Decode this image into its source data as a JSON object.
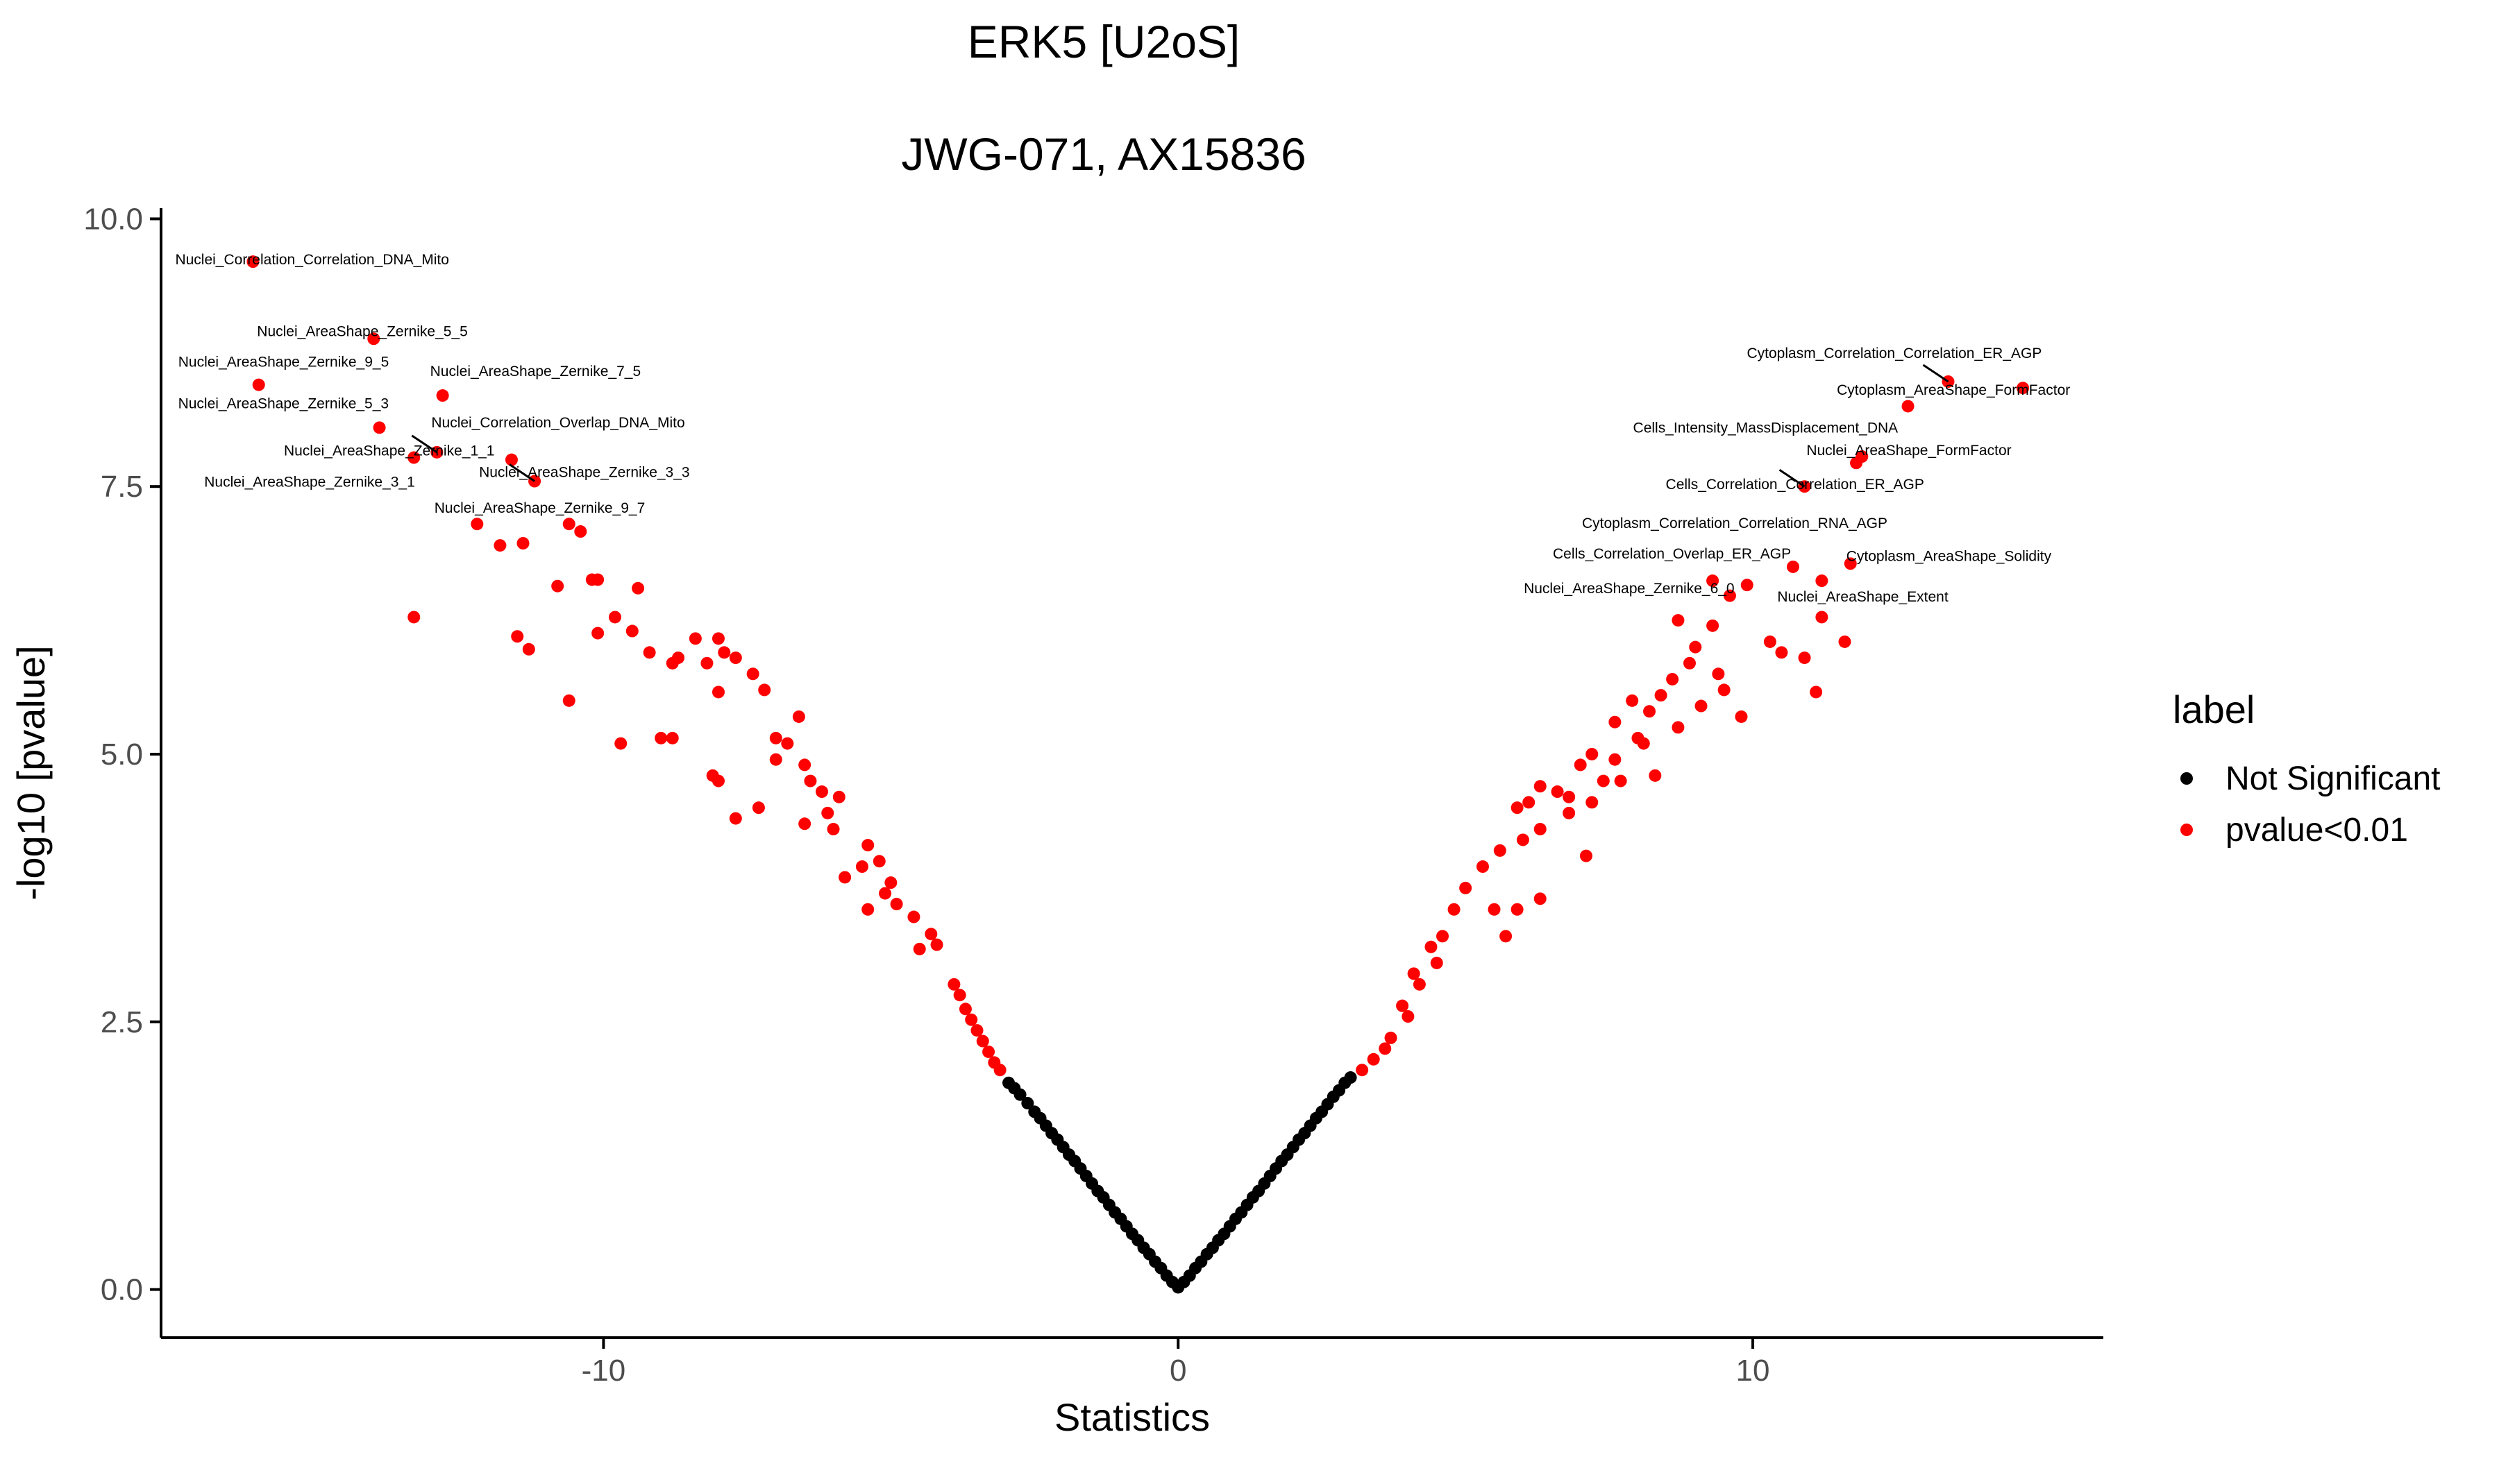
{
  "chart_data": {
    "type": "scatter",
    "title": "ERK5 [U2oS]",
    "subtitle": "JWG-071, AX15836",
    "xlabel": "Statistics",
    "ylabel": "-log10 [pvalue]",
    "xlim": [
      -17.7,
      16.1
    ],
    "ylim": [
      -0.45,
      10.1
    ],
    "x_ticks": [
      -10,
      0,
      10
    ],
    "x_tick_labels": [
      "-10",
      "0",
      "10"
    ],
    "y_ticks": [
      0,
      2.5,
      5,
      7.5,
      10
    ],
    "y_tick_labels": [
      "0.0",
      "2.5",
      "5.0",
      "7.5",
      "10.0"
    ],
    "grid": false,
    "legend": {
      "title": "label",
      "position": "right",
      "entries": [
        {
          "name": "Not Significant",
          "color": "#000000"
        },
        {
          "name": "pvalue<0.01",
          "color": "#ff0000"
        }
      ]
    },
    "series": [
      {
        "name": "Not Significant",
        "color": "#000000",
        "points": [
          [
            -2.95,
            1.93
          ],
          [
            -2.85,
            1.88
          ],
          [
            -2.75,
            1.82
          ],
          [
            -2.62,
            1.74
          ],
          [
            -2.5,
            1.66
          ],
          [
            -2.4,
            1.6
          ],
          [
            -2.3,
            1.53
          ],
          [
            -2.2,
            1.46
          ],
          [
            -2.1,
            1.4
          ],
          [
            -2.0,
            1.33
          ],
          [
            -1.9,
            1.26
          ],
          [
            -1.8,
            1.2
          ],
          [
            -1.7,
            1.13
          ],
          [
            -1.6,
            1.06
          ],
          [
            -1.5,
            0.99
          ],
          [
            -1.4,
            0.92
          ],
          [
            -1.3,
            0.86
          ],
          [
            -1.2,
            0.79
          ],
          [
            -1.1,
            0.72
          ],
          [
            -1.0,
            0.66
          ],
          [
            -0.9,
            0.59
          ],
          [
            -0.8,
            0.52
          ],
          [
            -0.7,
            0.46
          ],
          [
            -0.6,
            0.39
          ],
          [
            -0.5,
            0.33
          ],
          [
            -0.4,
            0.26
          ],
          [
            -0.3,
            0.2
          ],
          [
            -0.2,
            0.13
          ],
          [
            -0.1,
            0.07
          ],
          [
            0.0,
            0.02
          ],
          [
            0.1,
            0.07
          ],
          [
            0.2,
            0.13
          ],
          [
            0.3,
            0.2
          ],
          [
            0.4,
            0.26
          ],
          [
            0.5,
            0.33
          ],
          [
            0.6,
            0.39
          ],
          [
            0.7,
            0.46
          ],
          [
            0.8,
            0.52
          ],
          [
            0.9,
            0.59
          ],
          [
            1.0,
            0.66
          ],
          [
            1.1,
            0.72
          ],
          [
            1.2,
            0.79
          ],
          [
            1.3,
            0.86
          ],
          [
            1.4,
            0.92
          ],
          [
            1.5,
            0.99
          ],
          [
            1.6,
            1.06
          ],
          [
            1.7,
            1.13
          ],
          [
            1.8,
            1.2
          ],
          [
            1.9,
            1.26
          ],
          [
            2.0,
            1.33
          ],
          [
            2.1,
            1.4
          ],
          [
            2.2,
            1.46
          ],
          [
            2.3,
            1.53
          ],
          [
            2.4,
            1.6
          ],
          [
            2.5,
            1.66
          ],
          [
            2.6,
            1.73
          ],
          [
            2.7,
            1.8
          ],
          [
            2.8,
            1.86
          ],
          [
            2.9,
            1.93
          ],
          [
            3.0,
            1.98
          ]
        ]
      },
      {
        "name": "pvalue<0.01",
        "color": "#ff0000",
        "points": [
          [
            -16.1,
            9.6
          ],
          [
            -14.0,
            8.88
          ],
          [
            -16.0,
            8.45
          ],
          [
            -13.9,
            8.05
          ],
          [
            -12.8,
            8.35
          ],
          [
            -12.9,
            7.82
          ],
          [
            -13.3,
            7.77
          ],
          [
            -11.6,
            7.75
          ],
          [
            -11.2,
            7.55
          ],
          [
            -12.2,
            7.15
          ],
          [
            -10.6,
            7.15
          ],
          [
            -10.4,
            7.08
          ],
          [
            -11.4,
            6.97
          ],
          [
            -11.8,
            6.95
          ],
          [
            -10.2,
            6.63
          ],
          [
            -10.1,
            6.63
          ],
          [
            -10.8,
            6.57
          ],
          [
            -9.4,
            6.55
          ],
          [
            -13.3,
            6.28
          ],
          [
            -9.8,
            6.28
          ],
          [
            -9.5,
            6.15
          ],
          [
            -10.1,
            6.13
          ],
          [
            -11.5,
            6.1
          ],
          [
            -11.3,
            5.98
          ],
          [
            -9.2,
            5.95
          ],
          [
            -8.4,
            6.08
          ],
          [
            -8.0,
            6.08
          ],
          [
            -7.9,
            5.95
          ],
          [
            -8.7,
            5.9
          ],
          [
            -7.7,
            5.9
          ],
          [
            -8.2,
            5.85
          ],
          [
            -8.8,
            5.85
          ],
          [
            -7.4,
            5.75
          ],
          [
            -7.2,
            5.6
          ],
          [
            -8.0,
            5.58
          ],
          [
            -10.6,
            5.5
          ],
          [
            -6.6,
            5.35
          ],
          [
            -9.0,
            5.15
          ],
          [
            -8.8,
            5.15
          ],
          [
            -9.7,
            5.1
          ],
          [
            -7.0,
            5.15
          ],
          [
            -6.8,
            5.1
          ],
          [
            -7.0,
            4.95
          ],
          [
            -6.5,
            4.9
          ],
          [
            -6.4,
            4.75
          ],
          [
            -8.1,
            4.8
          ],
          [
            -8.0,
            4.75
          ],
          [
            -6.2,
            4.65
          ],
          [
            -5.9,
            4.6
          ],
          [
            -7.3,
            4.5
          ],
          [
            -6.1,
            4.45
          ],
          [
            -7.7,
            4.4
          ],
          [
            -6.5,
            4.35
          ],
          [
            -6.0,
            4.3
          ],
          [
            -5.4,
            4.15
          ],
          [
            -5.2,
            4.0
          ],
          [
            -5.5,
            3.95
          ],
          [
            -5.0,
            3.8
          ],
          [
            -5.8,
            3.85
          ],
          [
            -5.1,
            3.7
          ],
          [
            -4.9,
            3.6
          ],
          [
            -5.4,
            3.55
          ],
          [
            -4.6,
            3.48
          ],
          [
            -4.3,
            3.32
          ],
          [
            -4.2,
            3.22
          ],
          [
            -4.5,
            3.18
          ],
          [
            -3.9,
            2.85
          ],
          [
            -3.8,
            2.75
          ],
          [
            -3.7,
            2.62
          ],
          [
            -3.6,
            2.52
          ],
          [
            -3.5,
            2.42
          ],
          [
            -3.4,
            2.32
          ],
          [
            -3.3,
            2.22
          ],
          [
            -3.2,
            2.12
          ],
          [
            -3.1,
            2.05
          ],
          [
            13.4,
            8.48
          ],
          [
            14.7,
            8.42
          ],
          [
            12.7,
            8.25
          ],
          [
            11.9,
            7.78
          ],
          [
            11.8,
            7.72
          ],
          [
            10.9,
            7.5
          ],
          [
            10.7,
            6.75
          ],
          [
            11.7,
            6.78
          ],
          [
            9.3,
            6.62
          ],
          [
            9.9,
            6.58
          ],
          [
            11.2,
            6.62
          ],
          [
            9.6,
            6.48
          ],
          [
            11.2,
            6.28
          ],
          [
            8.7,
            6.25
          ],
          [
            9.3,
            6.2
          ],
          [
            11.6,
            6.05
          ],
          [
            10.3,
            6.05
          ],
          [
            9.0,
            6.0
          ],
          [
            8.9,
            5.85
          ],
          [
            10.5,
            5.95
          ],
          [
            10.9,
            5.9
          ],
          [
            9.4,
            5.75
          ],
          [
            8.6,
            5.7
          ],
          [
            9.5,
            5.6
          ],
          [
            11.1,
            5.58
          ],
          [
            8.4,
            5.55
          ],
          [
            9.1,
            5.45
          ],
          [
            7.9,
            5.5
          ],
          [
            8.2,
            5.4
          ],
          [
            9.8,
            5.35
          ],
          [
            7.6,
            5.3
          ],
          [
            8.7,
            5.25
          ],
          [
            8.1,
            5.1
          ],
          [
            8.0,
            5.15
          ],
          [
            7.2,
            5.0
          ],
          [
            7.6,
            4.95
          ],
          [
            7.0,
            4.9
          ],
          [
            8.3,
            4.8
          ],
          [
            7.4,
            4.75
          ],
          [
            6.3,
            4.7
          ],
          [
            6.6,
            4.65
          ],
          [
            7.7,
            4.75
          ],
          [
            6.8,
            4.6
          ],
          [
            6.1,
            4.55
          ],
          [
            5.9,
            4.5
          ],
          [
            6.8,
            4.45
          ],
          [
            7.2,
            4.55
          ],
          [
            6.3,
            4.3
          ],
          [
            6.0,
            4.2
          ],
          [
            7.1,
            4.05
          ],
          [
            5.6,
            4.1
          ],
          [
            5.3,
            3.95
          ],
          [
            5.0,
            3.75
          ],
          [
            6.3,
            3.65
          ],
          [
            5.5,
            3.55
          ],
          [
            5.9,
            3.55
          ],
          [
            4.8,
            3.55
          ],
          [
            4.6,
            3.3
          ],
          [
            5.7,
            3.3
          ],
          [
            4.4,
            3.2
          ],
          [
            4.5,
            3.05
          ],
          [
            4.1,
            2.95
          ],
          [
            4.2,
            2.85
          ],
          [
            3.9,
            2.65
          ],
          [
            4.0,
            2.55
          ],
          [
            3.7,
            2.35
          ],
          [
            3.6,
            2.25
          ],
          [
            3.4,
            2.15
          ],
          [
            3.2,
            2.05
          ]
        ]
      }
    ],
    "annotations": [
      {
        "text": "Nuclei_Correlation_Correlation_DNA_Mito",
        "x": -16.1,
        "y": 9.6
      },
      {
        "text": "Nuclei_AreaShape_Zernike_5_5",
        "x": -14.0,
        "y": 8.88
      },
      {
        "text": "Nuclei_AreaShape_Zernike_9_5",
        "x": -16.0,
        "y": 8.45
      },
      {
        "text": "Nuclei_AreaShape_Zernike_7_5",
        "x": -12.8,
        "y": 8.35
      },
      {
        "text": "Nuclei_AreaShape_Zernike_5_3",
        "x": -13.9,
        "y": 8.05
      },
      {
        "text": "Nuclei_Correlation_Overlap_DNA_Mito",
        "x": -12.9,
        "y": 7.82
      },
      {
        "text": "Nuclei_AreaShape_Zernike_1_1",
        "x": -11.6,
        "y": 7.75
      },
      {
        "text": "Nuclei_AreaShape_Zernike_3_1",
        "x": -13.3,
        "y": 7.77
      },
      {
        "text": "Nuclei_AreaShape_Zernike_3_3",
        "x": -11.2,
        "y": 7.55
      },
      {
        "text": "Nuclei_AreaShape_Zernike_9_7",
        "x": -10.6,
        "y": 7.15
      },
      {
        "text": "Cytoplasm_Correlation_Correlation_ER_AGP",
        "x": 13.4,
        "y": 8.48
      },
      {
        "text": "Cytoplasm_AreaShape_FormFactor",
        "x": 14.7,
        "y": 8.42
      },
      {
        "text": "Cells_Intensity_MassDisplacement_DNA",
        "x": 12.7,
        "y": 8.25
      },
      {
        "text": "Nuclei_AreaShape_FormFactor",
        "x": 11.9,
        "y": 7.78
      },
      {
        "text": "Cells_Correlation_Correlation_ER_AGP",
        "x": 10.9,
        "y": 7.5
      },
      {
        "text": "Cytoplasm_Correlation_Correlation_RNA_AGP",
        "x": 10.7,
        "y": 6.75
      },
      {
        "text": "Cells_Correlation_Overlap_ER_AGP",
        "x": 10.7,
        "y": 6.75
      },
      {
        "text": "Cytoplasm_AreaShape_Solidity",
        "x": 11.7,
        "y": 6.78
      },
      {
        "text": "Nuclei_AreaShape_Zernike_6_0",
        "x": 9.3,
        "y": 6.62
      },
      {
        "text": "Nuclei_AreaShape_Extent",
        "x": 11.2,
        "y": 6.62
      }
    ]
  }
}
